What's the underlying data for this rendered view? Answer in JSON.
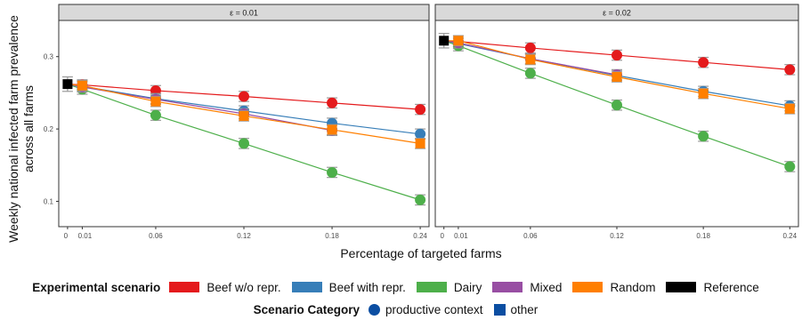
{
  "chart_data": {
    "type": "scatter",
    "ylabel_lines": [
      "Weekly national infected farm prevalence",
      "across all farms"
    ],
    "xlabel": "Percentage of targeted farms",
    "x_ticks": [
      0,
      0.01,
      0.06,
      0.12,
      0.18,
      0.24
    ],
    "x_tick_labels": [
      "0",
      "0.01",
      "0.06",
      "0.12",
      "0.18",
      "0.24"
    ],
    "xlim": [
      -0.006,
      0.246
    ],
    "ylim": [
      0.065,
      0.35
    ],
    "y_ticks": [
      0.1,
      0.2,
      0.3
    ],
    "y_tick_labels": [
      "0.1",
      "0.2",
      "0.3"
    ],
    "panels": [
      {
        "strip": "ε = 0.01",
        "reference": {
          "x": 0,
          "y": 0.262,
          "err": 0.01
        },
        "series": [
          {
            "name": "Beef w/o repr.",
            "color": "#E41A1C",
            "x": [
              0.01,
              0.06,
              0.12,
              0.18,
              0.24
            ],
            "y": [
              0.261,
              0.253,
              0.245,
              0.236,
              0.227
            ],
            "err": 0.007
          },
          {
            "name": "Beef with repr.",
            "color": "#377EB8",
            "x": [
              0.01,
              0.06,
              0.12,
              0.18,
              0.24
            ],
            "y": [
              0.259,
              0.242,
              0.225,
              0.208,
              0.193
            ],
            "err": 0.007
          },
          {
            "name": "Dairy",
            "color": "#4DAF4A",
            "x": [
              0.01,
              0.06,
              0.12,
              0.18,
              0.24
            ],
            "y": [
              0.255,
              0.219,
              0.18,
              0.14,
              0.102
            ],
            "err": 0.007
          },
          {
            "name": "Mixed",
            "color": "#984EA3",
            "x": [
              0.01,
              0.06,
              0.12,
              0.18
            ],
            "y": [
              0.258,
              0.241,
              0.221,
              0.198
            ],
            "err": 0.007
          },
          {
            "name": "Random",
            "color": "#FF7F00",
            "x": [
              0.01,
              0.06,
              0.12,
              0.18,
              0.24
            ],
            "y": [
              0.26,
              0.238,
              0.218,
              0.199,
              0.18
            ],
            "err": 0.007
          }
        ]
      },
      {
        "strip": "ε = 0.02",
        "reference": {
          "x": 0,
          "y": 0.322,
          "err": 0.01
        },
        "series": [
          {
            "name": "Beef w/o repr.",
            "color": "#E41A1C",
            "x": [
              0.01,
              0.06,
              0.12,
              0.18,
              0.24
            ],
            "y": [
              0.321,
              0.312,
              0.302,
              0.292,
              0.282
            ],
            "err": 0.007
          },
          {
            "name": "Beef with repr.",
            "color": "#377EB8",
            "x": [
              0.01,
              0.06,
              0.12,
              0.18,
              0.24
            ],
            "y": [
              0.318,
              0.297,
              0.274,
              0.252,
              0.232
            ],
            "err": 0.007
          },
          {
            "name": "Dairy",
            "color": "#4DAF4A",
            "x": [
              0.01,
              0.06,
              0.12,
              0.18,
              0.24
            ],
            "y": [
              0.315,
              0.277,
              0.233,
              0.19,
              0.148
            ],
            "err": 0.007
          },
          {
            "name": "Mixed",
            "color": "#984EA3",
            "x": [
              0.01,
              0.06,
              0.12
            ],
            "y": [
              0.319,
              0.297,
              0.275
            ],
            "err": 0.007
          },
          {
            "name": "Random",
            "color": "#FF7F00",
            "x": [
              0.01,
              0.06,
              0.12,
              0.18,
              0.24
            ],
            "y": [
              0.322,
              0.296,
              0.272,
              0.249,
              0.228
            ],
            "err": 0.007
          }
        ]
      }
    ],
    "legend": {
      "title": "Experimental scenario",
      "items": [
        {
          "label": "Beef w/o repr.",
          "color": "#E41A1C"
        },
        {
          "label": "Beef with repr.",
          "color": "#377EB8"
        },
        {
          "label": "Dairy",
          "color": "#4DAF4A"
        },
        {
          "label": "Mixed",
          "color": "#984EA3"
        },
        {
          "label": "Random",
          "color": "#FF7F00"
        },
        {
          "label": "Reference",
          "color": "#000000"
        }
      ]
    },
    "category_legend": {
      "title": "Scenario Category",
      "items": [
        {
          "label": "productive context",
          "shape": "circle",
          "color": "#0B4EA2"
        },
        {
          "label": "other",
          "shape": "square",
          "color": "#0B4EA2"
        }
      ]
    },
    "grid": false,
    "legend_position": "bottom"
  }
}
